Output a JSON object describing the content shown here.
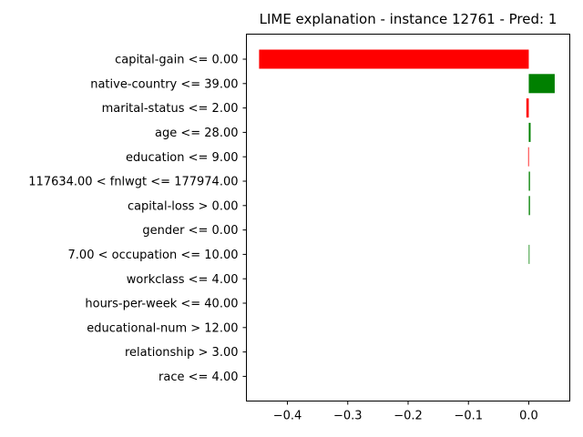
{
  "chart_data": {
    "type": "bar",
    "orientation": "horizontal",
    "title": "LIME explanation - instance 12761 - Pred: 1",
    "xlabel": "",
    "ylabel": "",
    "xlim": [
      -0.468,
      0.068
    ],
    "xticks": [
      -0.4,
      -0.3,
      -0.2,
      -0.1,
      0.0
    ],
    "xtick_labels": [
      "−0.4",
      "−0.3",
      "−0.2",
      "−0.1",
      "0.0"
    ],
    "grid": false,
    "legend": "none",
    "colors": {
      "negative": "#ff0000",
      "positive": "#008000"
    },
    "categories": [
      "capital-gain <= 0.00",
      "native-country <= 39.00",
      "marital-status <= 2.00",
      "age <= 28.00",
      "education <= 9.00",
      "117634.00 < fnlwgt <= 177974.00",
      "capital-loss > 0.00",
      "gender <= 0.00",
      "7.00 < occupation <= 10.00",
      "workclass <= 4.00",
      "hours-per-week <= 40.00",
      "educational-num > 12.00",
      "relationship > 3.00",
      "race <= 4.00"
    ],
    "values": [
      -0.447,
      0.043,
      -0.004,
      0.003,
      -0.001,
      0.002,
      0.002,
      0.0,
      0.001,
      0.0,
      0.0,
      0.0,
      0.0,
      0.0
    ]
  }
}
